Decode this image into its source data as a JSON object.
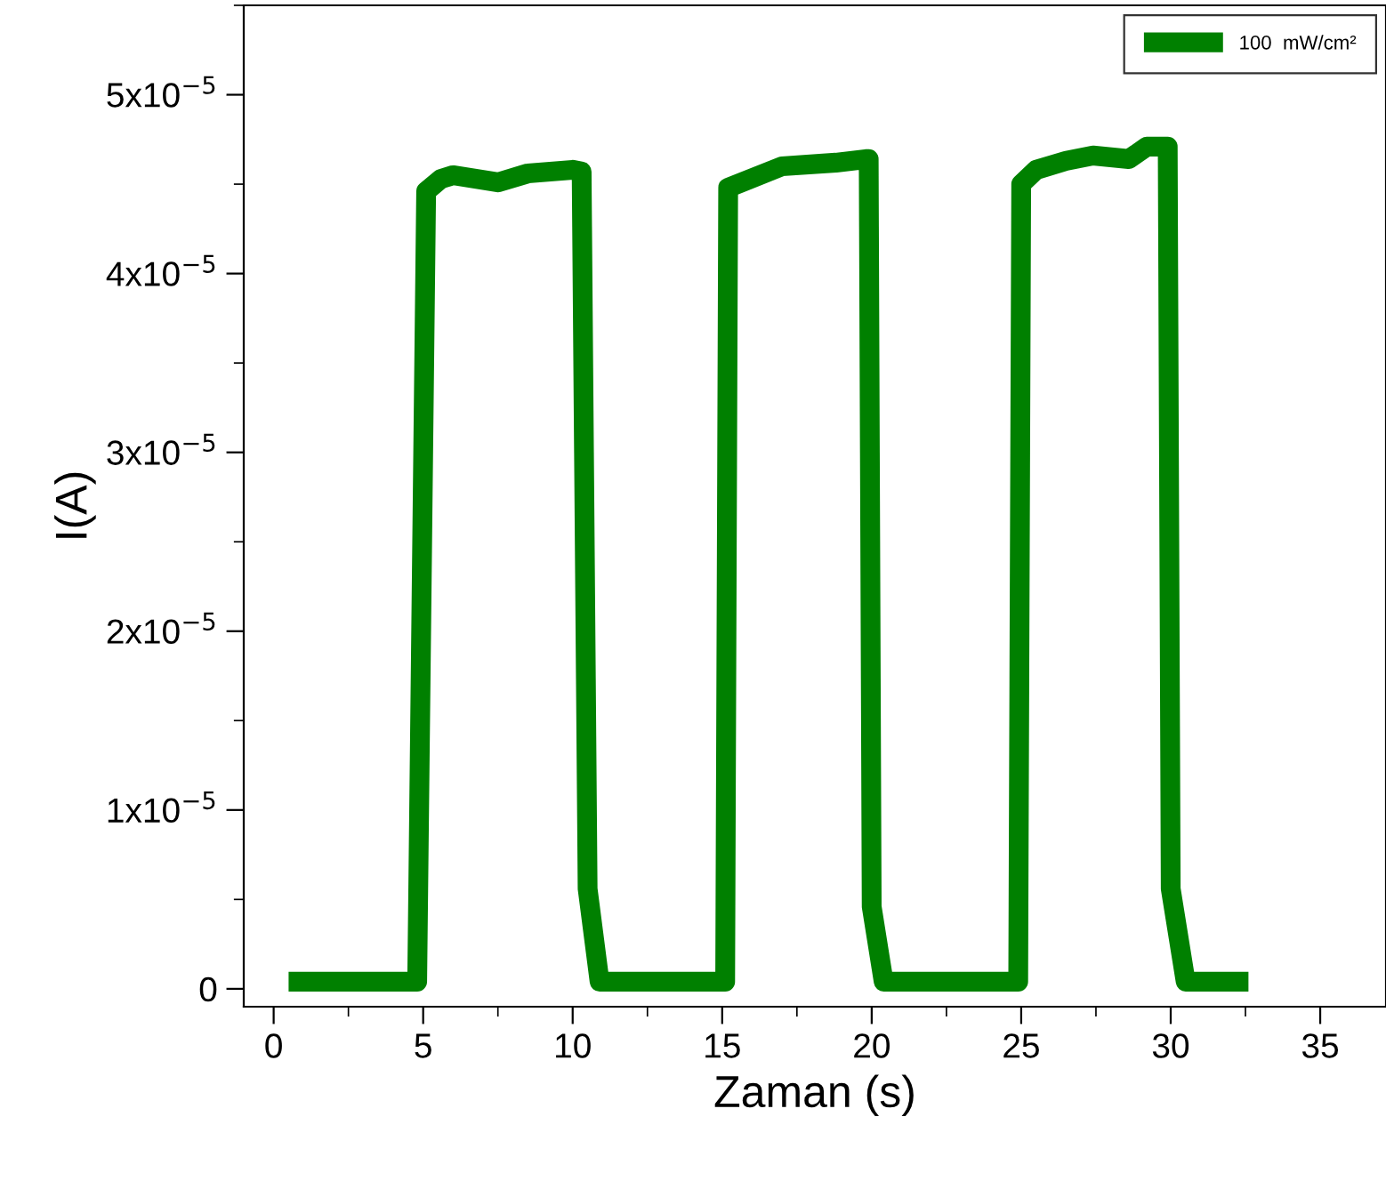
{
  "chart_data": {
    "type": "line",
    "xlabel": "Zaman (s)",
    "ylabel": "I(A)",
    "xlim": [
      -1,
      37.2
    ],
    "xticks": [
      0,
      5,
      10,
      15,
      20,
      25,
      30,
      35
    ],
    "ylim": [
      -1e-06,
      5.5e-05
    ],
    "yticks": [
      {
        "value": 0,
        "label": "0"
      },
      {
        "value": 1e-05,
        "label": "1x10$^{−5}$"
      },
      {
        "value": 2e-05,
        "label": "2x10$^{−5}$"
      },
      {
        "value": 3e-05,
        "label": "3x10$^{−5}$"
      },
      {
        "value": 4e-05,
        "label": "4x10$^{−5}$"
      },
      {
        "value": 5e-05,
        "label": "5x10$^{−5}$"
      }
    ],
    "grid": false,
    "legend": "top right",
    "marker": "none",
    "line_style": "solid",
    "series": [
      {
        "name": "100  mW/cm²",
        "color": "#008000",
        "x": [
          0.5,
          4.8,
          5.1,
          5.6,
          6.0,
          7.5,
          8.5,
          10.0,
          10.3,
          10.5,
          10.9,
          15.1,
          15.2,
          15.65,
          17.0,
          18.8,
          19.8,
          19.9,
          20.0,
          20.4,
          24.9,
          25.0,
          25.5,
          26.5,
          27.4,
          28.6,
          29.2,
          29.8,
          29.9,
          30.0,
          30.5,
          32.6
        ],
        "values": [
          4e-07,
          4e-07,
          4.46e-05,
          4.53e-05,
          4.55e-05,
          4.51e-05,
          4.56e-05,
          4.58e-05,
          4.57e-05,
          5.6e-06,
          4e-07,
          4e-07,
          4.48e-05,
          4.51e-05,
          4.6e-05,
          4.62e-05,
          4.64e-05,
          4.64e-05,
          4.6e-06,
          4e-07,
          4e-07,
          4.5e-05,
          4.58e-05,
          4.63e-05,
          4.66e-05,
          4.64e-05,
          4.71e-05,
          4.71e-05,
          4.71e-05,
          5.6e-06,
          4e-07,
          4e-07
        ]
      }
    ]
  }
}
